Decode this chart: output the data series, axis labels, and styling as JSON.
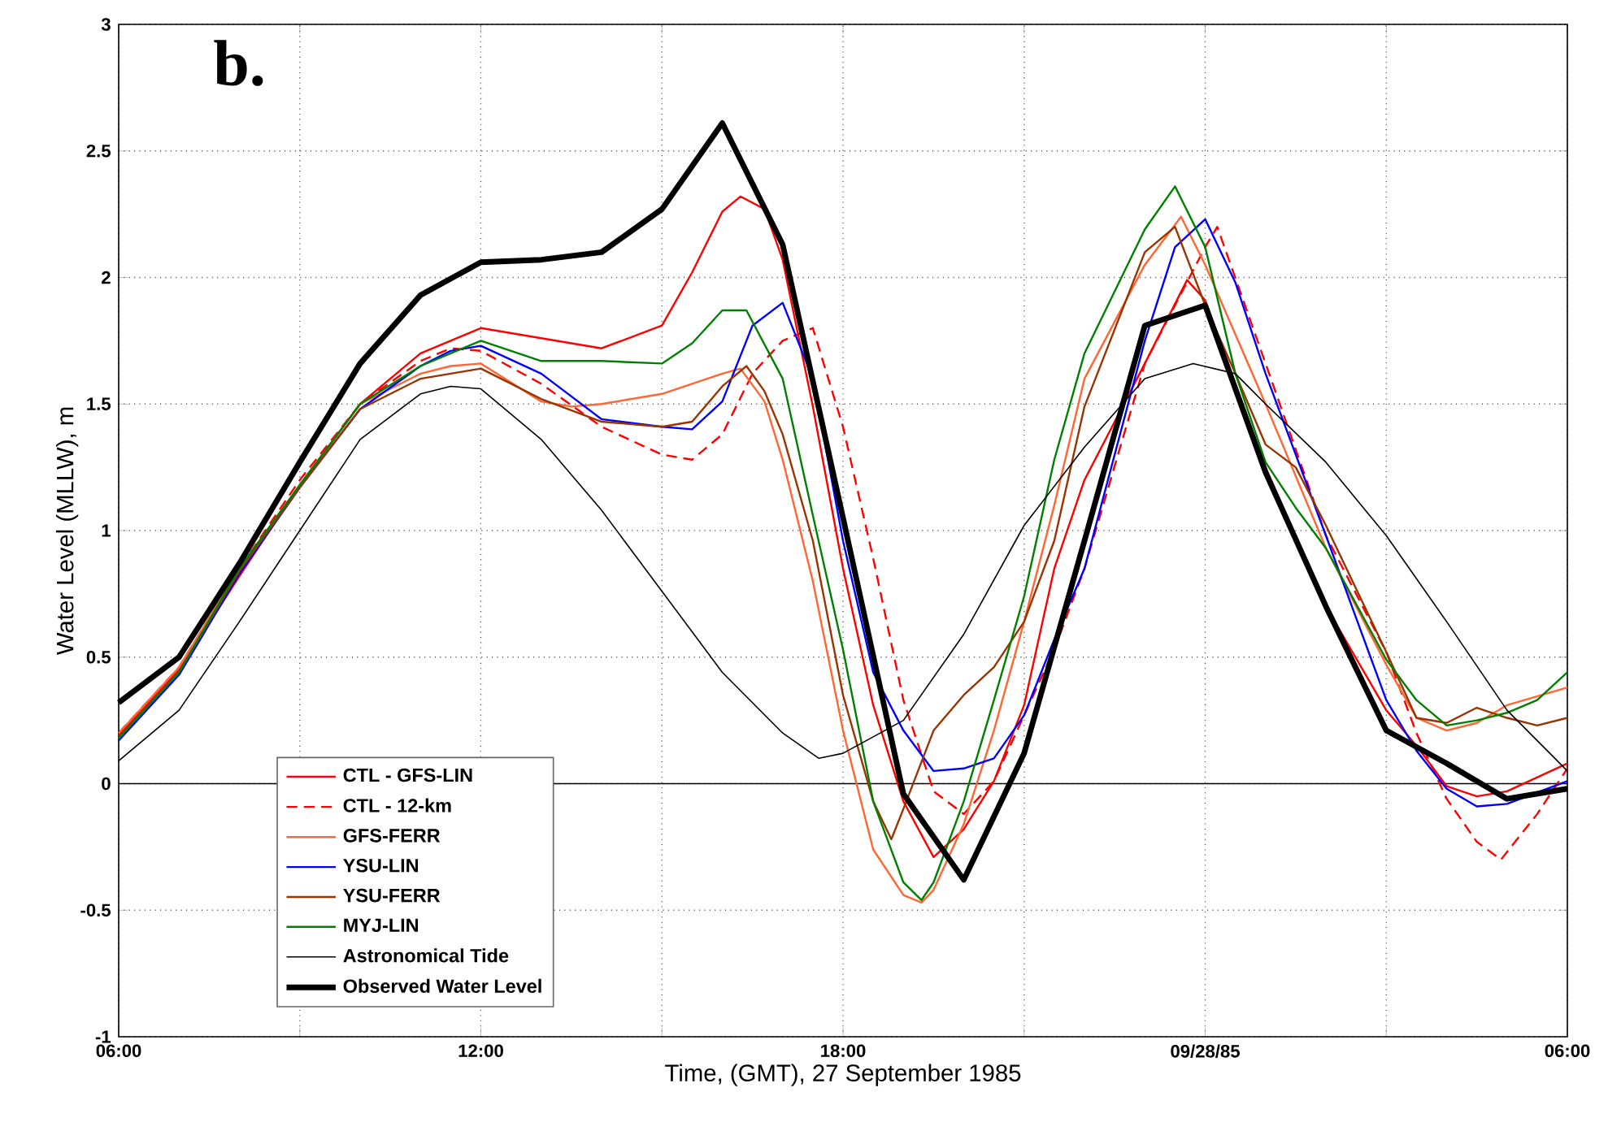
{
  "chart_data": {
    "type": "line",
    "xlabel": "Time, (GMT), 27 September 1985",
    "ylabel": "Water Level (MLLW), m",
    "annotations": [
      "b."
    ],
    "xlim": [
      "1985-09-27T06:00",
      "1985-09-28T06:00"
    ],
    "ylim": [
      -1,
      3
    ],
    "xticks": [
      {
        "value": "1985-09-27T06:00",
        "label": "06:00"
      },
      {
        "value": "1985-09-27T09:00",
        "label": null
      },
      {
        "value": "1985-09-27T12:00",
        "label": "12:00"
      },
      {
        "value": "1985-09-27T15:00",
        "label": null
      },
      {
        "value": "1985-09-27T18:00",
        "label": "18:00"
      },
      {
        "value": "1985-09-27T21:00",
        "label": null
      },
      {
        "value": "1985-09-28T00:00",
        "label": "09/28/85"
      },
      {
        "value": "1985-09-28T03:00",
        "label": null
      },
      {
        "value": "1985-09-28T06:00",
        "label": "06:00"
      }
    ],
    "yticks": [
      -1,
      -0.5,
      0,
      0.5,
      1,
      1.5,
      2,
      2.5,
      3
    ],
    "grid": true,
    "legend": "bottom left",
    "ref_lines": [
      {
        "axis": "y",
        "value": 0,
        "color": "#000000"
      }
    ],
    "series": [
      {
        "name": "CTL - GFS-LIN",
        "color": "#ff0000",
        "line_style": "solid",
        "x": [
          "1985-09-27T06:00",
          "1985-09-27T07:00",
          "1985-09-27T08:00",
          "1985-09-27T09:00",
          "1985-09-27T10:00",
          "1985-09-27T11:00",
          "1985-09-27T12:00",
          "1985-09-27T13:00",
          "1985-09-27T14:00",
          "1985-09-27T15:00",
          "1985-09-27T15:30",
          "1985-09-27T16:00",
          "1985-09-27T16:18",
          "1985-09-27T16:42",
          "1985-09-27T17:00",
          "1985-09-27T17:30",
          "1985-09-27T18:00",
          "1985-09-27T18:30",
          "1985-09-27T19:00",
          "1985-09-27T19:30",
          "1985-09-27T20:00",
          "1985-09-27T20:30",
          "1985-09-27T21:00",
          "1985-09-27T21:30",
          "1985-09-27T22:00",
          "1985-09-27T23:00",
          "1985-09-27T23:42",
          "1985-09-28T00:00",
          "1985-09-28T01:00",
          "1985-09-28T02:00",
          "1985-09-28T03:00",
          "1985-09-28T03:30",
          "1985-09-28T04:00",
          "1985-09-28T04:30",
          "1985-09-28T05:00",
          "1985-09-28T06:00"
        ],
        "values": [
          0.19,
          0.45,
          0.82,
          1.18,
          1.5,
          1.7,
          1.8,
          1.76,
          1.72,
          1.81,
          2.02,
          2.26,
          2.32,
          2.27,
          2.07,
          1.49,
          0.85,
          0.31,
          -0.07,
          -0.29,
          -0.18,
          0.01,
          0.31,
          0.85,
          1.2,
          1.66,
          1.99,
          1.91,
          1.25,
          0.7,
          0.29,
          0.15,
          -0.01,
          -0.05,
          -0.03,
          0.08
        ]
      },
      {
        "name": "CTL - 12-km",
        "color": "#ff0000",
        "line_style": "dashed",
        "x": [
          "1985-09-27T06:00",
          "1985-09-27T07:00",
          "1985-09-27T08:00",
          "1985-09-27T09:00",
          "1985-09-27T10:00",
          "1985-09-27T11:00",
          "1985-09-27T11:30",
          "1985-09-27T12:00",
          "1985-09-27T13:00",
          "1985-09-27T14:00",
          "1985-09-27T15:00",
          "1985-09-27T15:30",
          "1985-09-27T16:00",
          "1985-09-27T16:30",
          "1985-09-27T17:00",
          "1985-09-27T17:30",
          "1985-09-27T18:00",
          "1985-09-27T18:30",
          "1985-09-27T19:00",
          "1985-09-27T19:30",
          "1985-09-27T20:00",
          "1985-09-27T20:30",
          "1985-09-27T21:00",
          "1985-09-27T21:30",
          "1985-09-27T22:00",
          "1985-09-27T23:00",
          "1985-09-28T00:00",
          "1985-09-28T00:12",
          "1985-09-28T01:00",
          "1985-09-28T02:00",
          "1985-09-28T03:00",
          "1985-09-28T03:30",
          "1985-09-28T04:00",
          "1985-09-28T04:30",
          "1985-09-28T04:54",
          "1985-09-28T05:30",
          "1985-09-28T06:00"
        ],
        "values": [
          0.2,
          0.46,
          0.85,
          1.2,
          1.5,
          1.67,
          1.72,
          1.71,
          1.58,
          1.41,
          1.3,
          1.28,
          1.38,
          1.62,
          1.75,
          1.8,
          1.41,
          0.89,
          0.33,
          -0.03,
          -0.12,
          0.01,
          0.27,
          0.53,
          0.85,
          1.66,
          2.12,
          2.2,
          1.66,
          0.98,
          0.52,
          0.2,
          -0.06,
          -0.23,
          -0.3,
          -0.12,
          0.06
        ]
      },
      {
        "name": "GFS-FERR",
        "color": "#ff6633",
        "line_style": "solid",
        "x": [
          "1985-09-27T06:00",
          "1985-09-27T07:00",
          "1985-09-27T08:00",
          "1985-09-27T09:00",
          "1985-09-27T10:00",
          "1985-09-27T11:00",
          "1985-09-27T11:30",
          "1985-09-27T12:00",
          "1985-09-27T13:00",
          "1985-09-27T13:30",
          "1985-09-27T14:00",
          "1985-09-27T15:00",
          "1985-09-27T16:00",
          "1985-09-27T16:18",
          "1985-09-27T16:42",
          "1985-09-27T17:00",
          "1985-09-27T17:30",
          "1985-09-27T18:00",
          "1985-09-27T18:30",
          "1985-09-27T19:00",
          "1985-09-27T19:18",
          "1985-09-27T19:30",
          "1985-09-27T20:00",
          "1985-09-27T20:30",
          "1985-09-27T21:00",
          "1985-09-27T21:30",
          "1985-09-27T22:00",
          "1985-09-27T23:00",
          "1985-09-27T23:36",
          "1985-09-28T00:00",
          "1985-09-28T01:00",
          "1985-09-28T02:00",
          "1985-09-28T03:00",
          "1985-09-28T03:30",
          "1985-09-28T04:00",
          "1985-09-28T04:30",
          "1985-09-28T05:00",
          "1985-09-28T06:00"
        ],
        "values": [
          0.2,
          0.46,
          0.85,
          1.18,
          1.5,
          1.62,
          1.65,
          1.66,
          1.51,
          1.49,
          1.5,
          1.54,
          1.62,
          1.64,
          1.51,
          1.28,
          0.8,
          0.21,
          -0.26,
          -0.44,
          -0.47,
          -0.42,
          -0.16,
          0.21,
          0.64,
          1.1,
          1.6,
          2.05,
          2.24,
          2.05,
          1.5,
          0.93,
          0.47,
          0.26,
          0.21,
          0.24,
          0.31,
          0.38
        ]
      },
      {
        "name": "YSU-LIN",
        "color": "#0000ff",
        "line_style": "solid",
        "x": [
          "1985-09-27T06:00",
          "1985-09-27T07:00",
          "1985-09-27T08:00",
          "1985-09-27T09:00",
          "1985-09-27T10:00",
          "1985-09-27T11:00",
          "1985-09-27T11:30",
          "1985-09-27T12:00",
          "1985-09-27T13:00",
          "1985-09-27T14:00",
          "1985-09-27T15:00",
          "1985-09-27T15:30",
          "1985-09-27T16:00",
          "1985-09-27T16:30",
          "1985-09-27T17:00",
          "1985-09-27T17:30",
          "1985-09-27T18:00",
          "1985-09-27T18:30",
          "1985-09-27T19:00",
          "1985-09-27T19:30",
          "1985-09-27T20:00",
          "1985-09-27T20:30",
          "1985-09-27T21:00",
          "1985-09-27T21:30",
          "1985-09-27T22:00",
          "1985-09-27T23:00",
          "1985-09-27T23:30",
          "1985-09-28T00:00",
          "1985-09-28T00:30",
          "1985-09-28T01:00",
          "1985-09-28T02:00",
          "1985-09-28T03:00",
          "1985-09-28T03:30",
          "1985-09-28T04:00",
          "1985-09-28T04:30",
          "1985-09-28T05:00",
          "1985-09-28T06:00"
        ],
        "values": [
          0.17,
          0.43,
          0.83,
          1.17,
          1.48,
          1.65,
          1.71,
          1.73,
          1.62,
          1.44,
          1.41,
          1.4,
          1.51,
          1.81,
          1.9,
          1.6,
          0.96,
          0.44,
          0.21,
          0.05,
          0.06,
          0.1,
          0.27,
          0.57,
          0.85,
          1.75,
          2.12,
          2.23,
          1.98,
          1.62,
          0.98,
          0.33,
          0.13,
          -0.02,
          -0.09,
          -0.08,
          0.01
        ]
      },
      {
        "name": "YSU-FERR",
        "color": "#993300",
        "line_style": "solid",
        "x": [
          "1985-09-27T06:00",
          "1985-09-27T07:00",
          "1985-09-27T08:00",
          "1985-09-27T09:00",
          "1985-09-27T10:00",
          "1985-09-27T11:00",
          "1985-09-27T12:00",
          "1985-09-27T13:00",
          "1985-09-27T14:00",
          "1985-09-27T15:00",
          "1985-09-27T15:30",
          "1985-09-27T16:00",
          "1985-09-27T16:24",
          "1985-09-27T16:42",
          "1985-09-27T17:00",
          "1985-09-27T17:30",
          "1985-09-27T18:00",
          "1985-09-27T18:30",
          "1985-09-27T18:48",
          "1985-09-27T19:00",
          "1985-09-27T19:30",
          "1985-09-27T20:00",
          "1985-09-27T20:30",
          "1985-09-27T21:00",
          "1985-09-27T21:30",
          "1985-09-27T22:00",
          "1985-09-27T23:00",
          "1985-09-27T23:30",
          "1985-09-28T00:00",
          "1985-09-28T00:30",
          "1985-09-28T01:00",
          "1985-09-28T01:30",
          "1985-09-28T02:00",
          "1985-09-28T03:00",
          "1985-09-28T03:30",
          "1985-09-28T04:00",
          "1985-09-28T04:30",
          "1985-09-28T05:00",
          "1985-09-28T05:30",
          "1985-09-28T06:00"
        ],
        "values": [
          0.18,
          0.44,
          0.84,
          1.17,
          1.48,
          1.6,
          1.64,
          1.52,
          1.43,
          1.41,
          1.43,
          1.57,
          1.65,
          1.55,
          1.38,
          0.96,
          0.35,
          -0.07,
          -0.22,
          -0.1,
          0.21,
          0.35,
          0.46,
          0.64,
          0.96,
          1.49,
          2.1,
          2.2,
          1.89,
          1.62,
          1.34,
          1.25,
          1.02,
          0.52,
          0.26,
          0.24,
          0.3,
          0.26,
          0.23,
          0.26
        ]
      },
      {
        "name": "MYJ-LIN",
        "color": "#008000",
        "line_style": "solid",
        "x": [
          "1985-09-27T06:00",
          "1985-09-27T07:00",
          "1985-09-27T08:00",
          "1985-09-27T09:00",
          "1985-09-27T10:00",
          "1985-09-27T11:00",
          "1985-09-27T12:00",
          "1985-09-27T13:00",
          "1985-09-27T14:00",
          "1985-09-27T15:00",
          "1985-09-27T15:30",
          "1985-09-27T16:00",
          "1985-09-27T16:24",
          "1985-09-27T17:00",
          "1985-09-27T17:30",
          "1985-09-27T18:00",
          "1985-09-27T18:30",
          "1985-09-27T19:00",
          "1985-09-27T19:18",
          "1985-09-27T19:30",
          "1985-09-27T20:00",
          "1985-09-27T20:30",
          "1985-09-27T21:00",
          "1985-09-27T21:30",
          "1985-09-27T22:00",
          "1985-09-27T23:00",
          "1985-09-27T23:30",
          "1985-09-28T00:00",
          "1985-09-28T00:30",
          "1985-09-28T01:00",
          "1985-09-28T01:30",
          "1985-09-28T02:00",
          "1985-09-28T03:00",
          "1985-09-28T03:30",
          "1985-09-28T04:00",
          "1985-09-28T04:30",
          "1985-09-28T05:00",
          "1985-09-28T05:30",
          "1985-09-28T06:00"
        ],
        "values": [
          0.18,
          0.44,
          0.85,
          1.18,
          1.5,
          1.65,
          1.75,
          1.67,
          1.67,
          1.66,
          1.74,
          1.87,
          1.87,
          1.6,
          1.06,
          0.53,
          -0.07,
          -0.39,
          -0.46,
          -0.39,
          -0.07,
          0.33,
          0.74,
          1.28,
          1.7,
          2.19,
          2.36,
          2.12,
          1.62,
          1.27,
          1.09,
          0.93,
          0.49,
          0.33,
          0.23,
          0.25,
          0.28,
          0.33,
          0.44
        ]
      },
      {
        "name": "Astronomical Tide",
        "color": "#000000",
        "line_style": "solid",
        "x": [
          "1985-09-27T06:00",
          "1985-09-27T07:00",
          "1985-09-27T08:00",
          "1985-09-27T09:00",
          "1985-09-27T10:00",
          "1985-09-27T11:00",
          "1985-09-27T11:30",
          "1985-09-27T12:00",
          "1985-09-27T13:00",
          "1985-09-27T14:00",
          "1985-09-27T15:00",
          "1985-09-27T16:00",
          "1985-09-27T17:00",
          "1985-09-27T17:36",
          "1985-09-27T18:00",
          "1985-09-27T19:00",
          "1985-09-27T20:00",
          "1985-09-27T21:00",
          "1985-09-27T22:00",
          "1985-09-27T23:00",
          "1985-09-27T23:48",
          "1985-09-28T00:30",
          "1985-09-28T01:00",
          "1985-09-28T02:00",
          "1985-09-28T03:00",
          "1985-09-28T04:00",
          "1985-09-28T05:00",
          "1985-09-28T06:00"
        ],
        "values": [
          0.09,
          0.29,
          0.64,
          1.0,
          1.36,
          1.54,
          1.57,
          1.56,
          1.36,
          1.08,
          0.76,
          0.44,
          0.2,
          0.1,
          0.12,
          0.25,
          0.59,
          1.02,
          1.33,
          1.6,
          1.66,
          1.62,
          1.5,
          1.27,
          0.98,
          0.64,
          0.29,
          0.05
        ]
      },
      {
        "name": "Observed Water Level",
        "color": "#000000",
        "line_style": "solid",
        "x": [
          "1985-09-27T06:00",
          "1985-09-27T07:00",
          "1985-09-27T08:00",
          "1985-09-27T09:00",
          "1985-09-27T10:00",
          "1985-09-27T11:00",
          "1985-09-27T12:00",
          "1985-09-27T13:00",
          "1985-09-27T14:00",
          "1985-09-27T15:00",
          "1985-09-27T16:00",
          "1985-09-27T17:00",
          "1985-09-27T18:00",
          "1985-09-27T19:00",
          "1985-09-27T20:00",
          "1985-09-27T21:00",
          "1985-09-27T22:00",
          "1985-09-27T23:00",
          "1985-09-28T00:00",
          "1985-09-28T01:00",
          "1985-09-28T02:00",
          "1985-09-28T03:00",
          "1985-09-28T04:00",
          "1985-09-28T05:00",
          "1985-09-28T06:00"
        ],
        "values": [
          0.32,
          0.5,
          0.87,
          1.27,
          1.66,
          1.93,
          2.06,
          2.07,
          2.1,
          2.27,
          2.61,
          2.13,
          1.05,
          -0.04,
          -0.38,
          0.12,
          0.96,
          1.81,
          1.89,
          1.23,
          0.7,
          0.21,
          0.08,
          -0.06,
          -0.02
        ]
      }
    ]
  }
}
